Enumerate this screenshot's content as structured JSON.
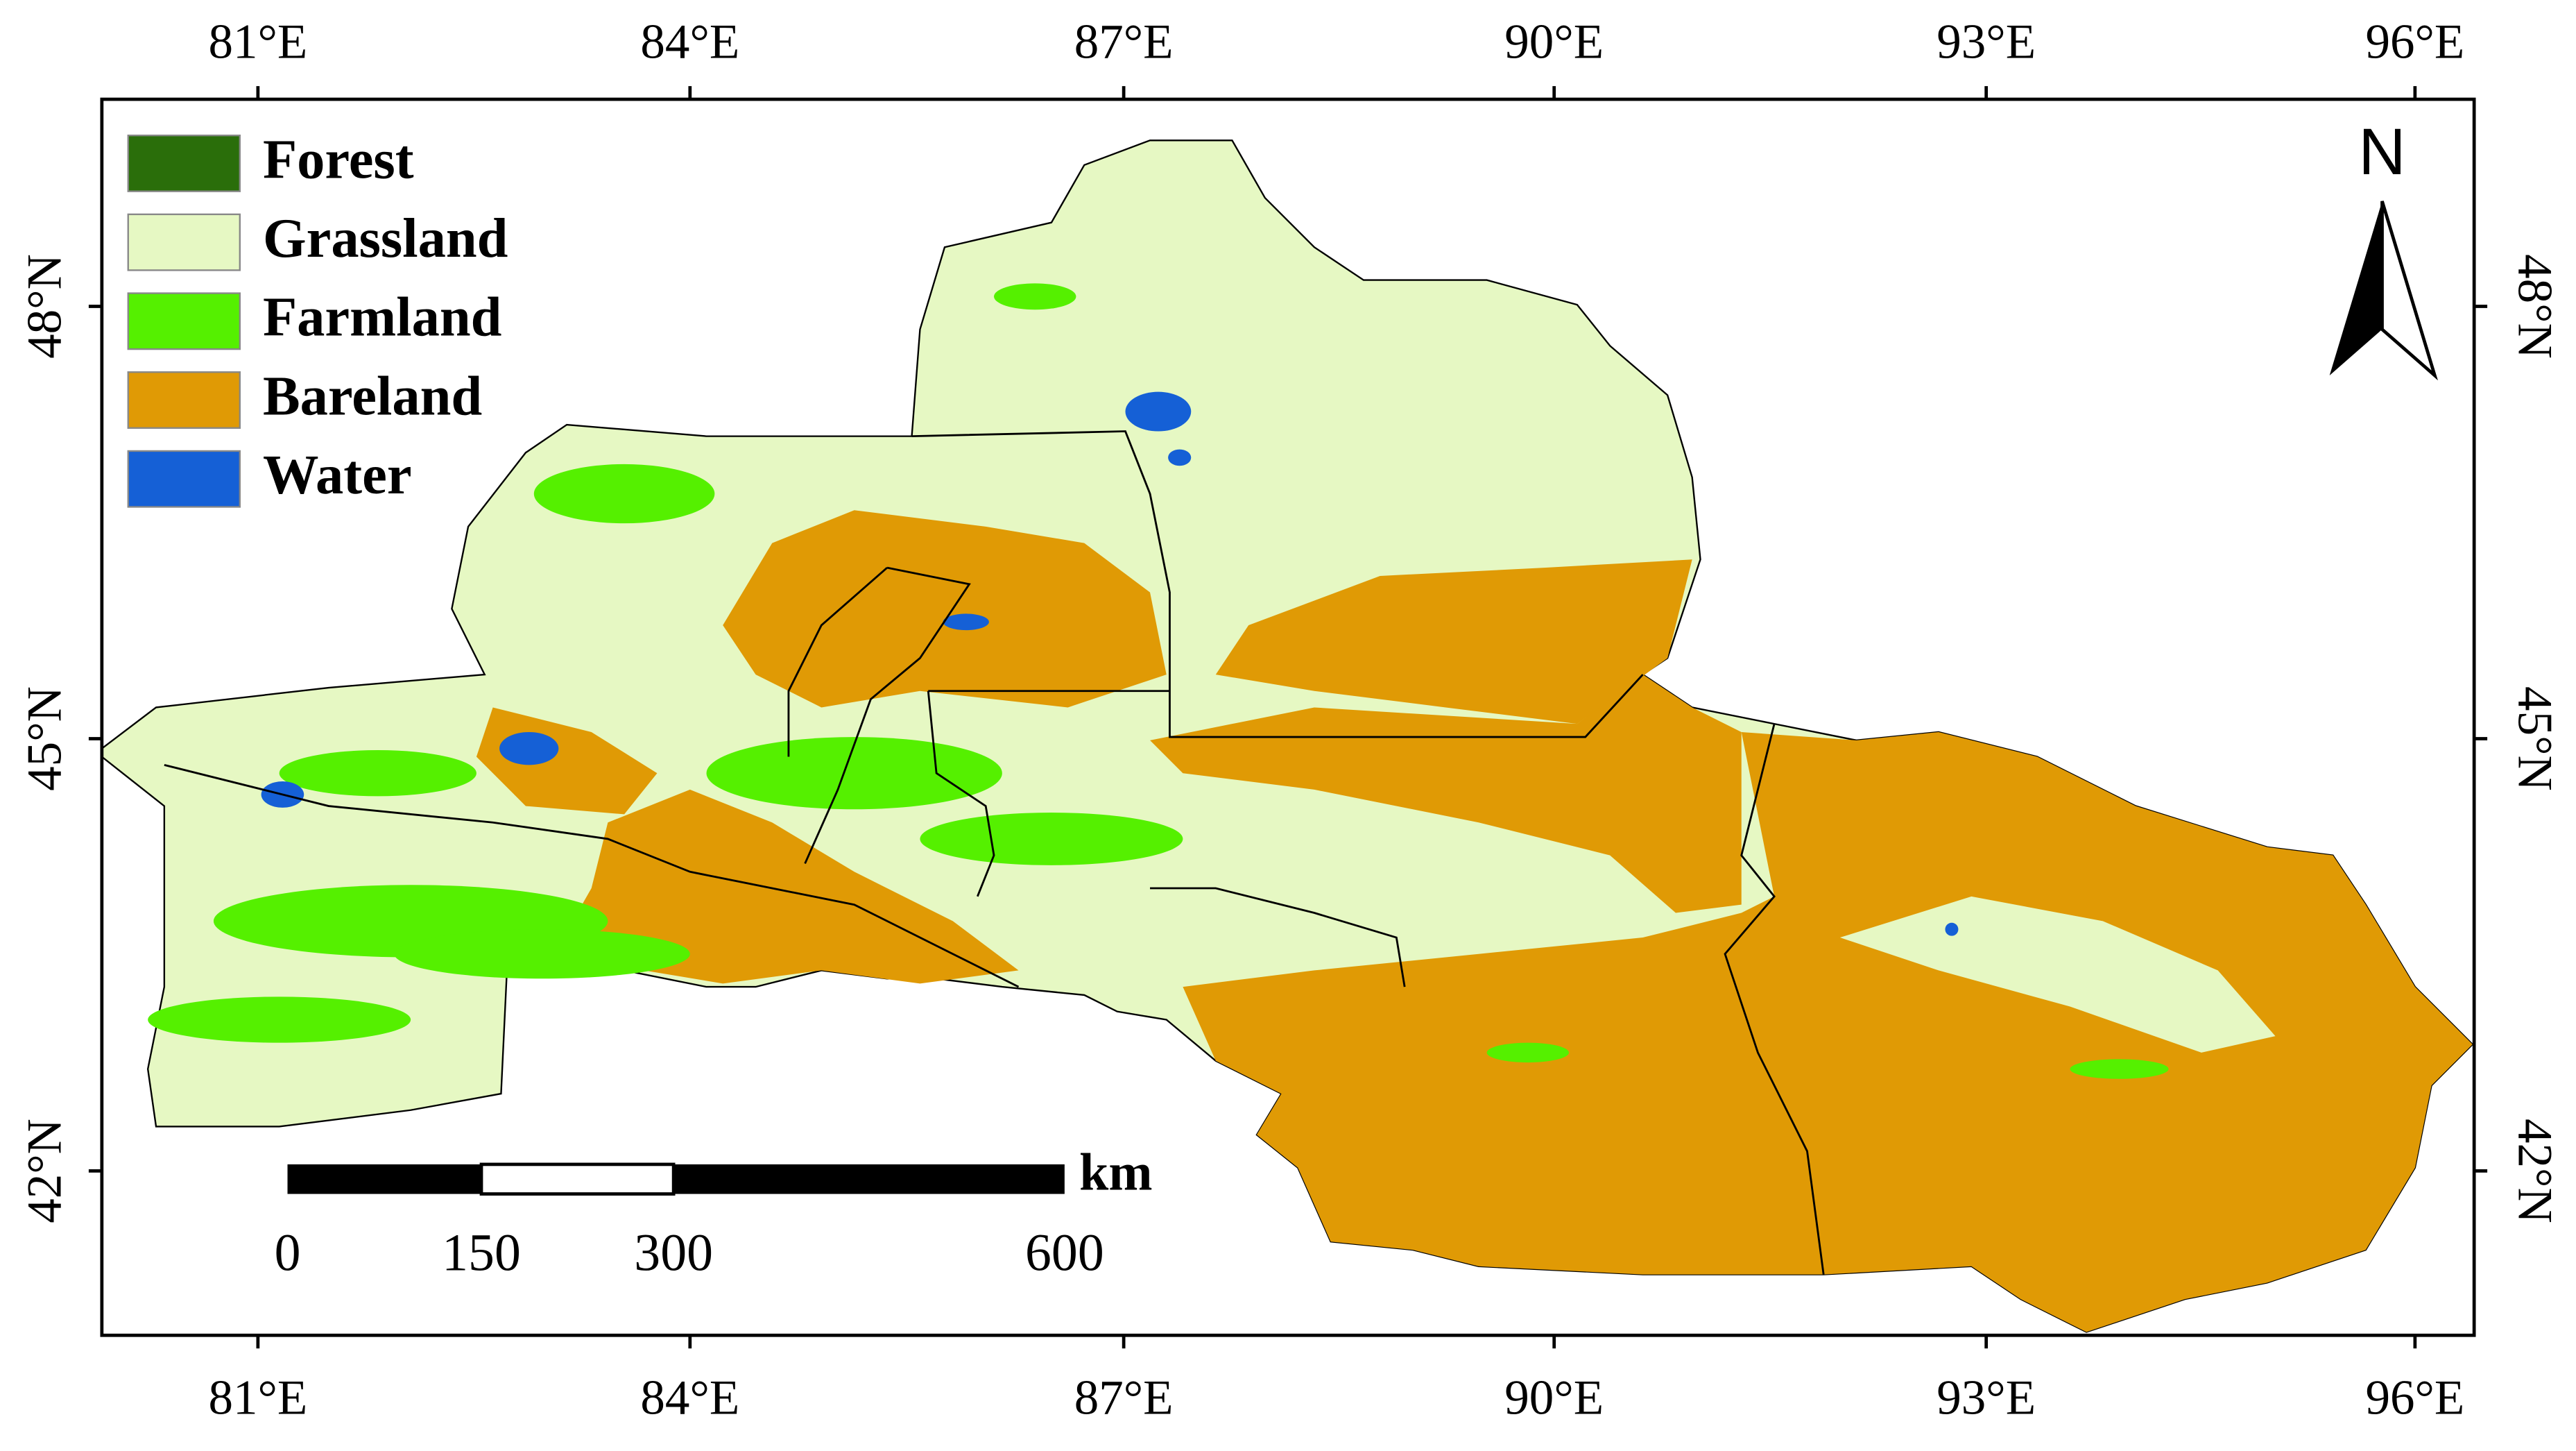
{
  "map": {
    "lon_labels": [
      "81°E",
      "84°E",
      "87°E",
      "90°E",
      "93°E",
      "96°E"
    ],
    "lat_labels": [
      "48°N",
      "45°N",
      "42°N"
    ],
    "legend": [
      {
        "label": "Forest",
        "color": "#2a6e0a"
      },
      {
        "label": "Grassland",
        "color": "#e6f8c3"
      },
      {
        "label": "Farmland",
        "color": "#55f000"
      },
      {
        "label": "Bareland",
        "color": "#e09a05"
      },
      {
        "label": "Water",
        "color": "#1560d6"
      }
    ],
    "north": "N",
    "scale_bar": {
      "labels": [
        "0",
        "150",
        "300",
        "600"
      ],
      "unit": "km"
    }
  }
}
